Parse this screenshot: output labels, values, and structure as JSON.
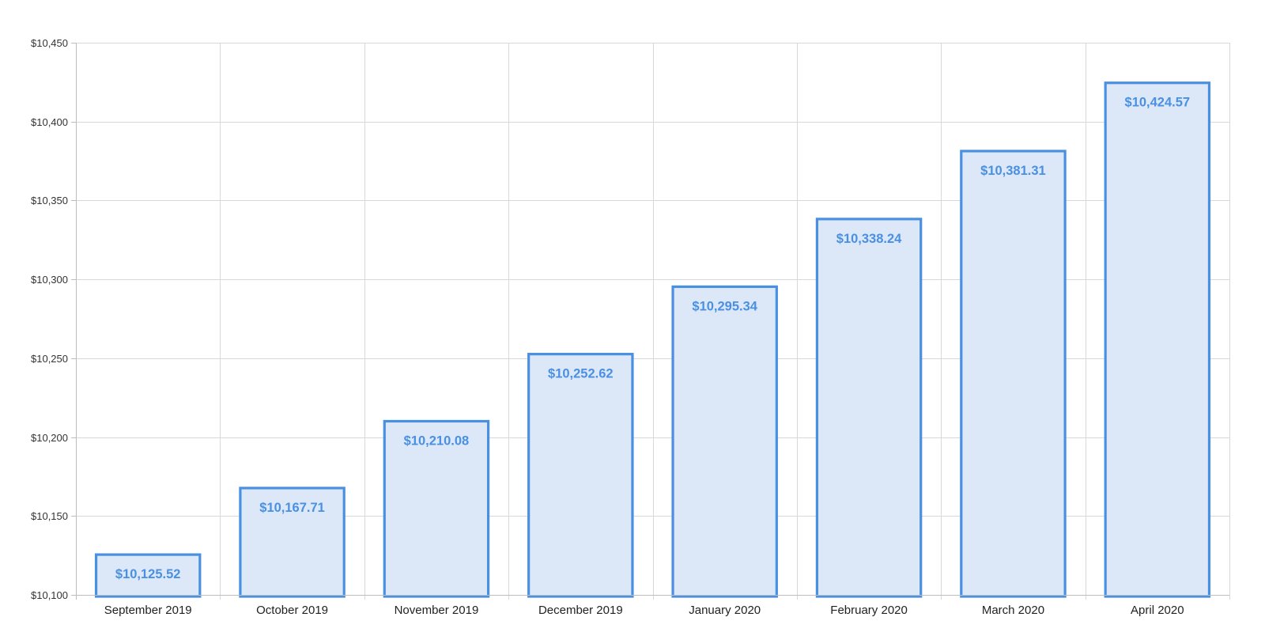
{
  "chart_data": {
    "type": "bar",
    "title": "",
    "xlabel": "",
    "ylabel": "",
    "ylim": [
      10100,
      10450
    ],
    "yticks": [
      10100,
      10150,
      10200,
      10250,
      10300,
      10350,
      10400,
      10450
    ],
    "ytick_labels": [
      "$10,100",
      "$10,150",
      "$10,200",
      "$10,250",
      "$10,300",
      "$10,350",
      "$10,400",
      "$10,450"
    ],
    "categories": [
      "September 2019",
      "October 2019",
      "November 2019",
      "December 2019",
      "January 2020",
      "February 2020",
      "March 2020",
      "April 2020"
    ],
    "values": [
      10125.52,
      10167.71,
      10210.08,
      10252.62,
      10295.34,
      10338.24,
      10381.31,
      10424.57
    ],
    "data_labels": [
      "$10,125.52",
      "$10,167.71",
      "$10,210.08",
      "$10,252.62",
      "$10,295.34",
      "$10,338.24",
      "$10,381.31",
      "$10,424.57"
    ],
    "grid": true,
    "legend": "none",
    "colors": {
      "bar_fill": "#dce8f8",
      "bar_stroke": "#4a90e2",
      "label_color": "#4a90e2"
    }
  }
}
